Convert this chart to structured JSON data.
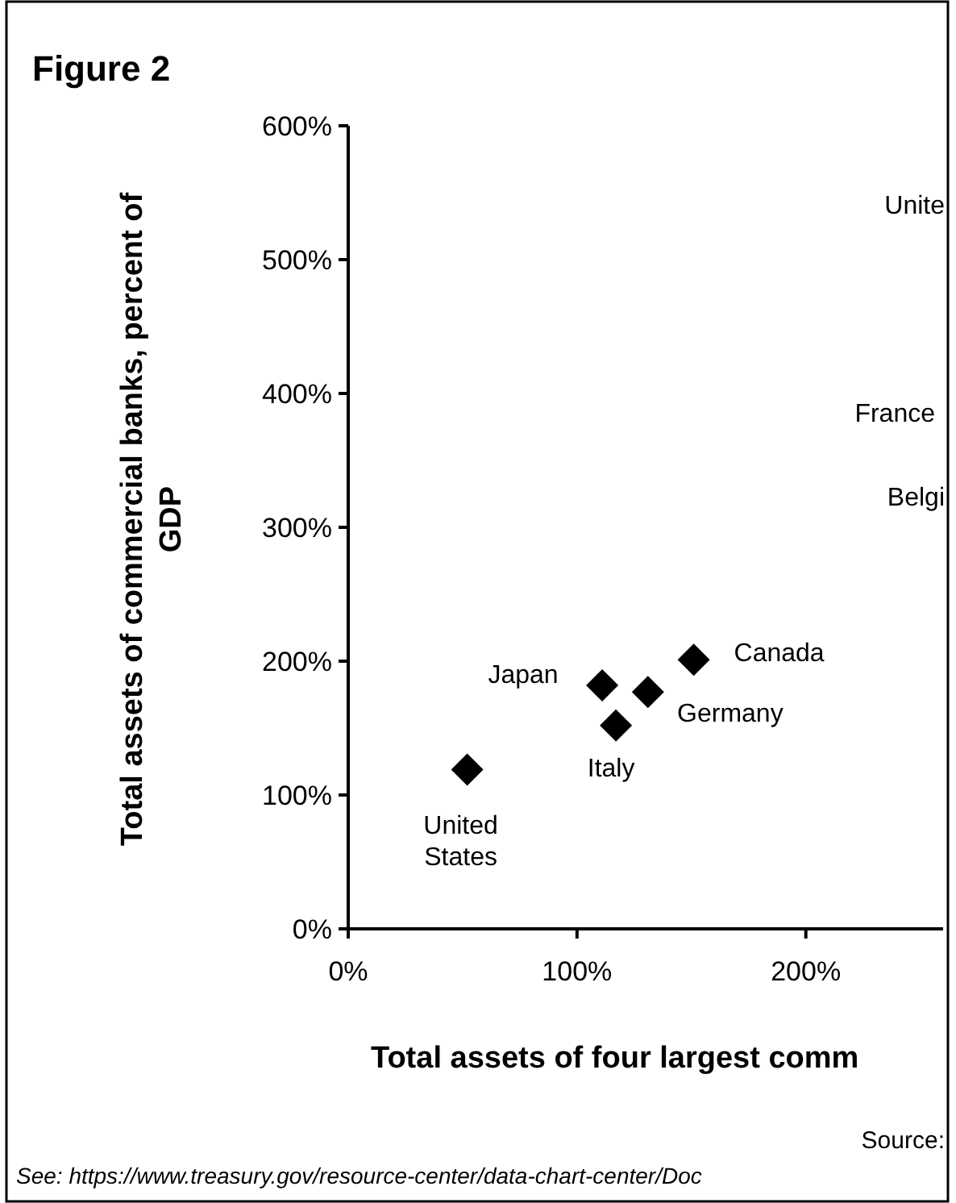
{
  "chart_data": {
    "type": "scatter",
    "title": "Figure 2",
    "xlabel": "Total assets of four largest comm",
    "ylabel": "Total assets of commercial banks, percent of\nGDP",
    "series": [
      {
        "color": "#000000",
        "x": [
          52,
          111,
          117,
          131,
          151
        ],
        "values": [
          119,
          182,
          152,
          177,
          201
        ]
      }
    ],
    "marker": "diamond",
    "xlim": [
      0,
      260
    ],
    "xticks": [
      {
        "value": 0,
        "label": "0%"
      },
      {
        "value": 100,
        "label": "100%"
      },
      {
        "value": 200,
        "label": "200%"
      }
    ],
    "ylim": [
      0,
      600
    ],
    "yticks": [
      {
        "value": 0,
        "label": "0%"
      },
      {
        "value": 100,
        "label": "100%"
      },
      {
        "value": 200,
        "label": "200%"
      },
      {
        "value": 300,
        "label": "300%"
      },
      {
        "value": 400,
        "label": "400%"
      },
      {
        "value": 500,
        "label": "500%"
      },
      {
        "value": 600,
        "label": "600%"
      }
    ],
    "annotations": [
      {
        "text": "United\nStates",
        "x": 52,
        "y": 119
      },
      {
        "text": "Japan",
        "x": 111,
        "y": 182
      },
      {
        "text": "Italy",
        "x": 117,
        "y": 152
      },
      {
        "text": "Germany",
        "x": 131,
        "y": 177
      },
      {
        "text": "Canada",
        "x": 151,
        "y": 201
      },
      "Unite",
      "France",
      "Belgi",
      "Source:",
      "See: https://www.treasury.gov/resource-center/data-chart-center/Doc"
    ]
  }
}
